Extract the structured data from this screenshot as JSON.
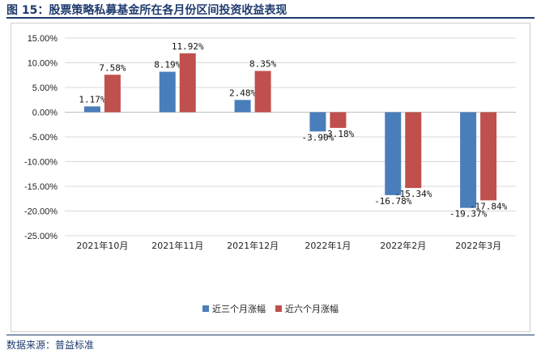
{
  "figure": {
    "title": "图 15：股票策略私募基金所在各月份区间投资收益表现",
    "source": "数据来源：普益标准"
  },
  "chart_data": {
    "type": "bar",
    "categories": [
      "2021年10月",
      "2021年11月",
      "2021年12月",
      "2022年1月",
      "2022年2月",
      "2022年3月"
    ],
    "series": [
      {
        "name": "近三个月涨幅",
        "color": "#4a7ebb",
        "values": [
          1.17,
          8.19,
          2.48,
          -3.9,
          -16.78,
          -19.37
        ],
        "labels": [
          "1.17%",
          "8.19%",
          "2.48%",
          "-3.90%",
          "-16.78%",
          "-19.37%"
        ]
      },
      {
        "name": "近六个月涨幅",
        "color": "#c0504d",
        "values": [
          7.58,
          11.92,
          8.35,
          -3.18,
          -15.34,
          -17.84
        ],
        "labels": [
          "7.58%",
          "11.92%",
          "8.35%",
          "-3.18%",
          "-15.34%",
          "-17.84%"
        ]
      }
    ],
    "yticks": [
      "15.00%",
      "10.00%",
      "5.00%",
      "0.00%",
      "-5.00%",
      "-10.00%",
      "-15.00%",
      "-20.00%",
      "-25.00%"
    ],
    "ytick_values": [
      15,
      10,
      5,
      0,
      -5,
      -10,
      -15,
      -20,
      -25
    ],
    "ylim": [
      -25,
      15
    ],
    "grid": true,
    "legend_position": "bottom"
  }
}
